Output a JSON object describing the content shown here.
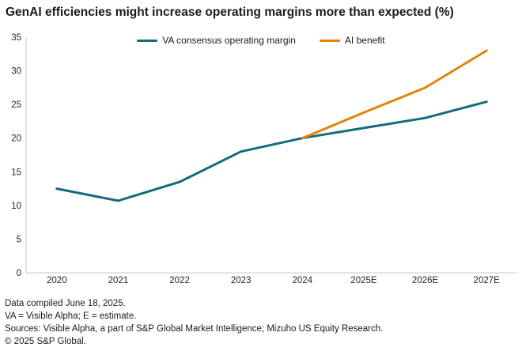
{
  "title": "GenAI efficiencies might increase operating margins more than expected (%)",
  "colors": {
    "teal": "#156A7F",
    "orange": "#E5820E",
    "axis": "#C9C9C9",
    "text": "#1A1A1A"
  },
  "legend": [
    {
      "label": "VA consensus operating margin",
      "color": "#156A7F"
    },
    {
      "label": "AI benefit",
      "color": "#E5820E"
    }
  ],
  "footnotes": [
    "Data compiled June 18, 2025.",
    "VA = Visible Alpha; E = estimate.",
    "Sources: Visible Alpha, a part of S&P Global Market Intelligence; Mizuho US Equity Research.",
    "© 2025 S&P Global."
  ],
  "chart_data": {
    "type": "line",
    "title": "GenAI efficiencies might increase operating margins more than expected (%)",
    "categories": [
      "2020",
      "2021",
      "2022",
      "2023",
      "2024",
      "2025E",
      "2026E",
      "2027E"
    ],
    "series": [
      {
        "name": "VA consensus operating margin",
        "color": "#156A7F",
        "values": [
          12.5,
          10.7,
          13.5,
          18,
          20,
          21.5,
          23,
          25.4
        ]
      },
      {
        "name": "AI benefit",
        "color": "#E5820E",
        "values": [
          null,
          null,
          null,
          null,
          20,
          23.8,
          27.5,
          33
        ]
      }
    ],
    "xlabel": "",
    "ylabel": "",
    "ylim": [
      0,
      35
    ],
    "ytick_step": 5,
    "grid": false,
    "legend_position": "top-center"
  }
}
